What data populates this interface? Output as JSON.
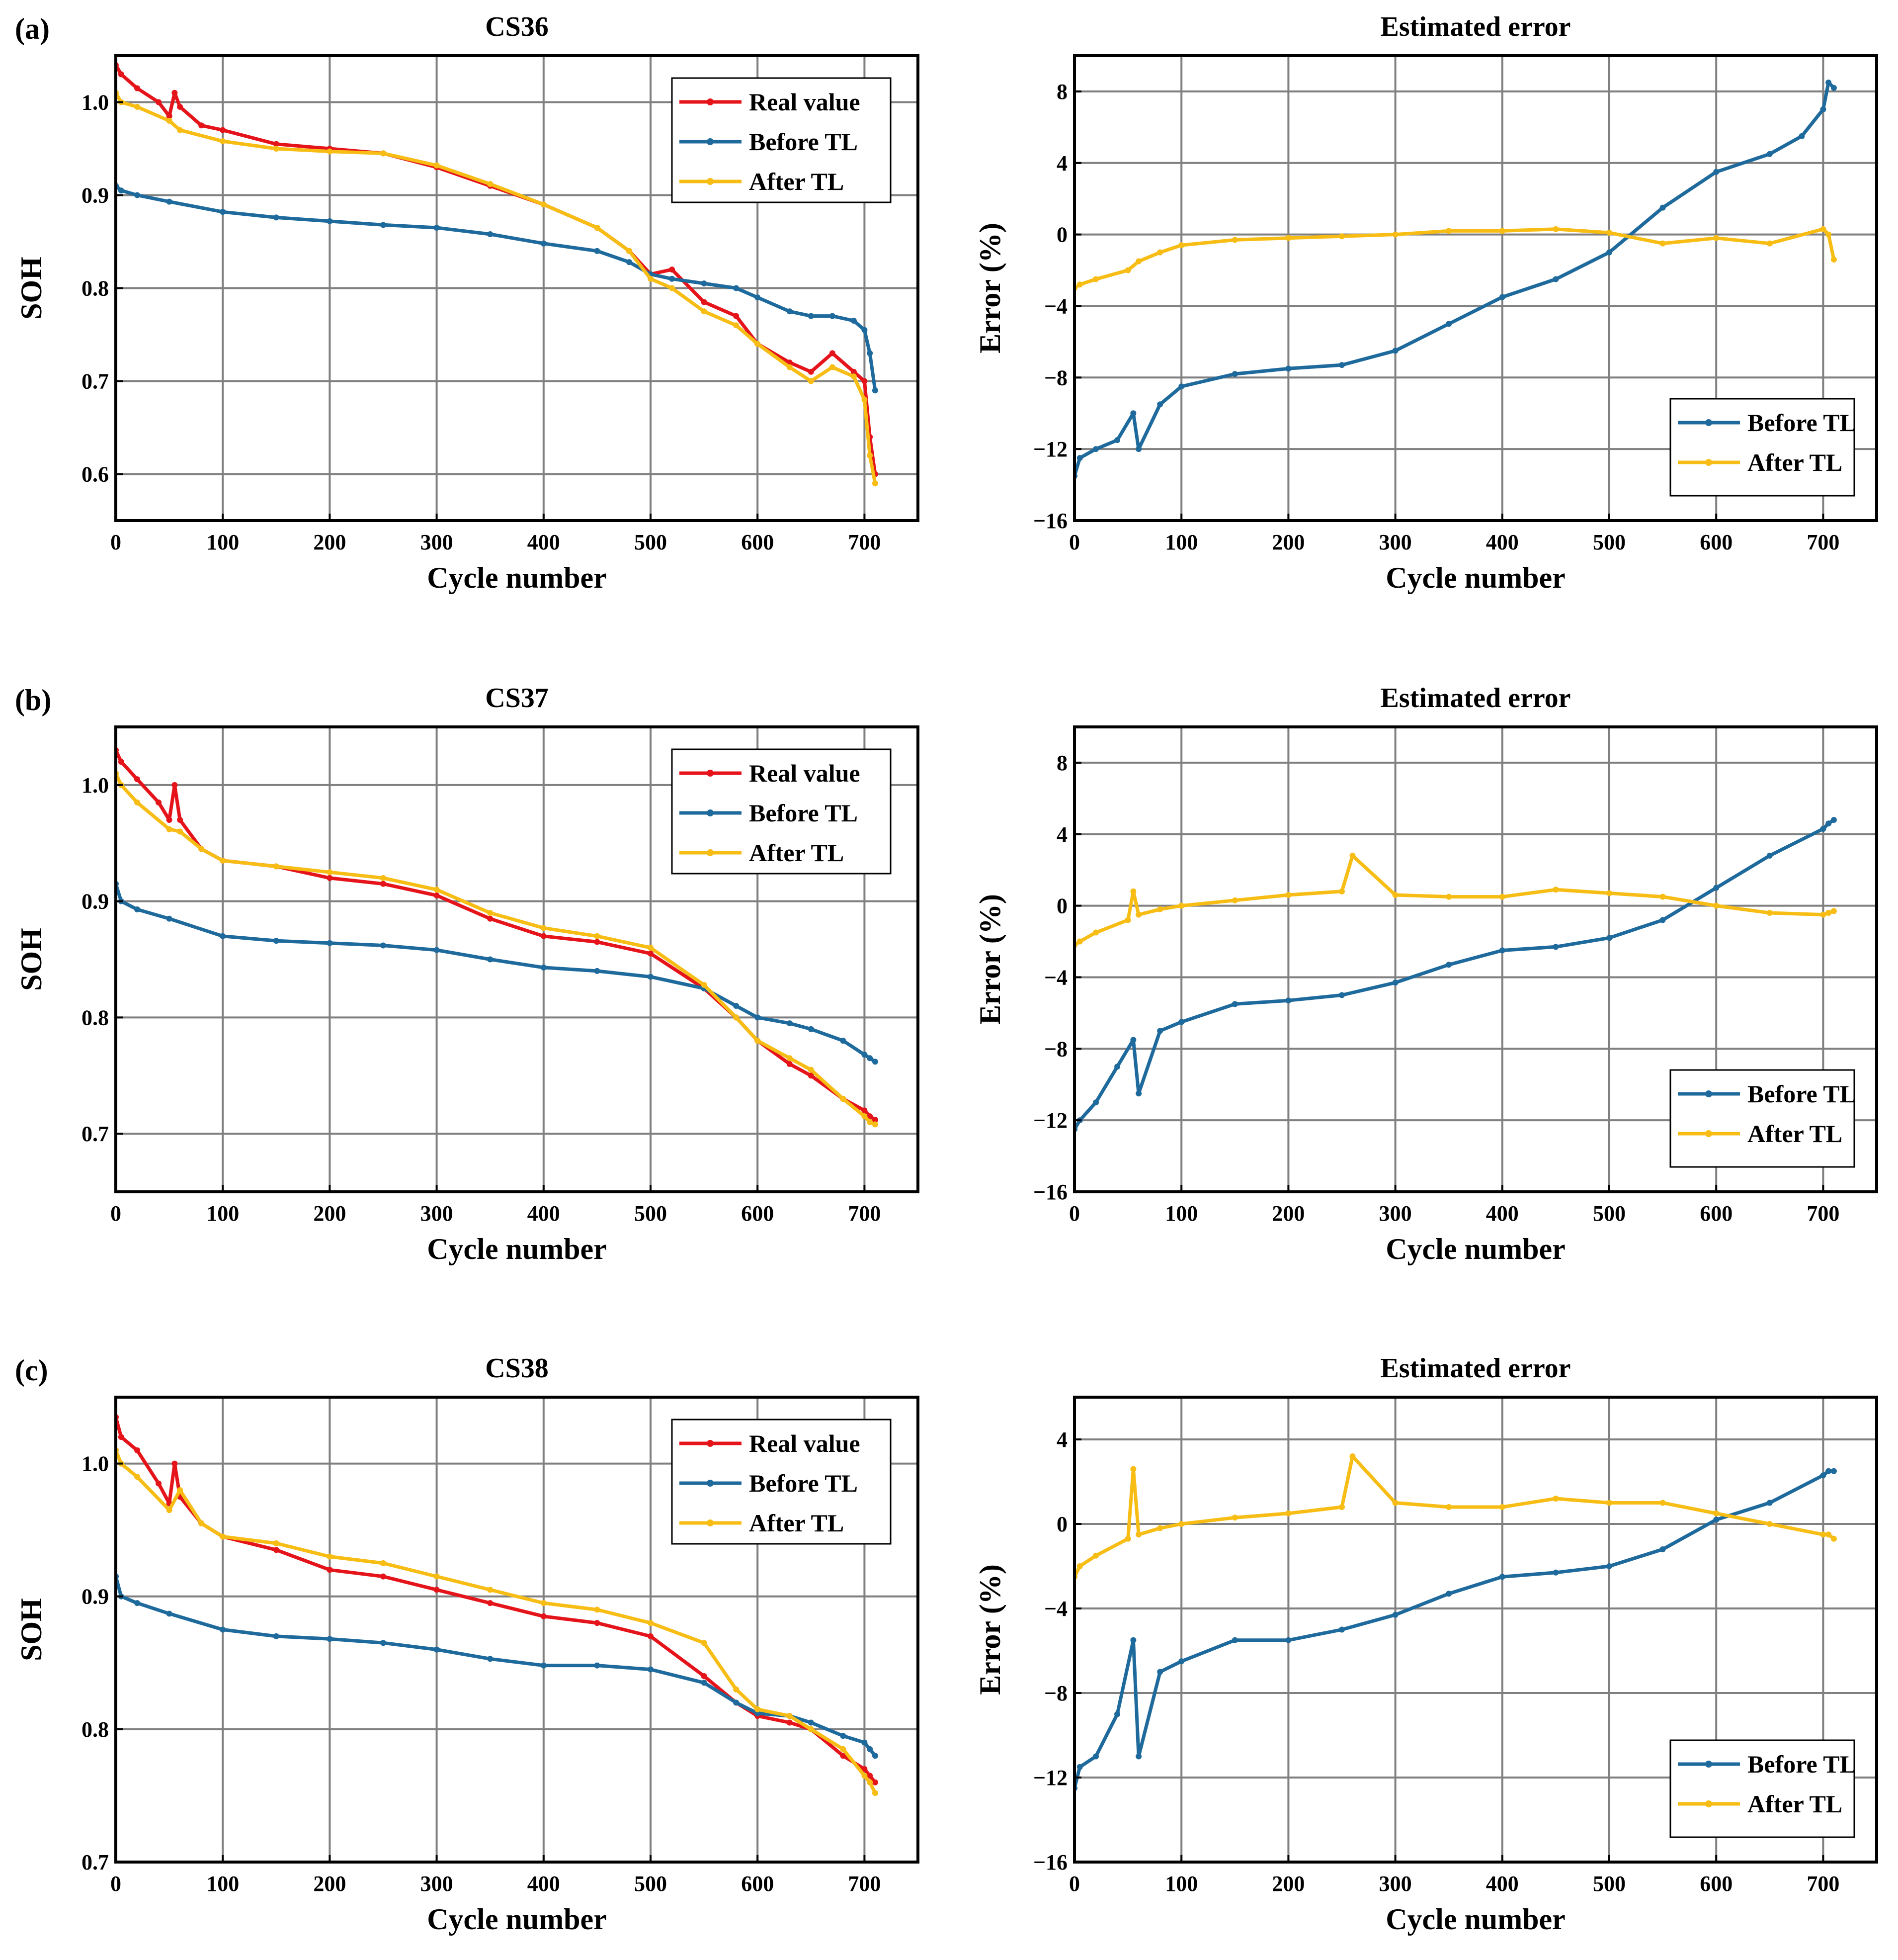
{
  "figure": {
    "panel_labels": [
      "(a)",
      "(b)",
      "(c)"
    ],
    "colors": {
      "real_value": "#e5141a",
      "before_tl": "#1f6a9c",
      "after_tl": "#f7bd14",
      "grid": "#808080",
      "axis": "#000000"
    }
  },
  "chart_data": [
    {
      "id": "a-soh",
      "type": "line",
      "panel": "(a)",
      "title": "CS36",
      "xlabel": "Cycle number",
      "ylabel": "SOH",
      "xlim": [
        0,
        750
      ],
      "ylim": [
        0.55,
        1.05
      ],
      "xticks": [
        0,
        100,
        200,
        300,
        400,
        500,
        600,
        700
      ],
      "yticks": [
        0.6,
        0.7,
        0.8,
        0.9,
        1.0
      ],
      "ytick_labels": [
        "0.6",
        "0.7",
        "0.8",
        "0.9",
        "1.0"
      ],
      "legend_position": "top-right",
      "series": [
        {
          "name": "Real value",
          "color": "#e5141a",
          "x": [
            0,
            5,
            20,
            40,
            50,
            55,
            60,
            80,
            100,
            150,
            200,
            250,
            300,
            350,
            400,
            450,
            480,
            500,
            520,
            550,
            580,
            600,
            630,
            650,
            670,
            690,
            700,
            705,
            710
          ],
          "y": [
            1.04,
            1.03,
            1.015,
            1.0,
            0.985,
            1.01,
            0.995,
            0.975,
            0.97,
            0.955,
            0.95,
            0.945,
            0.93,
            0.91,
            0.89,
            0.865,
            0.84,
            0.815,
            0.82,
            0.785,
            0.77,
            0.74,
            0.72,
            0.71,
            0.73,
            0.71,
            0.7,
            0.64,
            0.6
          ]
        },
        {
          "name": "Before TL",
          "color": "#1f6a9c",
          "x": [
            0,
            5,
            20,
            50,
            100,
            150,
            200,
            250,
            300,
            350,
            400,
            450,
            480,
            500,
            520,
            550,
            580,
            600,
            630,
            650,
            670,
            690,
            700,
            705,
            710
          ],
          "y": [
            0.91,
            0.905,
            0.9,
            0.893,
            0.882,
            0.876,
            0.872,
            0.868,
            0.865,
            0.858,
            0.848,
            0.84,
            0.828,
            0.815,
            0.81,
            0.805,
            0.8,
            0.79,
            0.775,
            0.77,
            0.77,
            0.765,
            0.755,
            0.73,
            0.69
          ]
        },
        {
          "name": "After TL",
          "color": "#f7bd14",
          "x": [
            0,
            5,
            20,
            50,
            60,
            100,
            150,
            200,
            250,
            300,
            350,
            400,
            450,
            480,
            500,
            520,
            550,
            580,
            600,
            630,
            650,
            670,
            690,
            700,
            705,
            710
          ],
          "y": [
            1.01,
            1.0,
            0.995,
            0.98,
            0.97,
            0.958,
            0.95,
            0.947,
            0.945,
            0.932,
            0.912,
            0.89,
            0.865,
            0.84,
            0.81,
            0.8,
            0.775,
            0.76,
            0.74,
            0.715,
            0.7,
            0.715,
            0.705,
            0.68,
            0.62,
            0.59
          ]
        }
      ]
    },
    {
      "id": "a-err",
      "type": "line",
      "panel": "(a)",
      "title": "Estimated error",
      "xlabel": "Cycle number",
      "ylabel": "Error (%)",
      "xlim": [
        0,
        750
      ],
      "ylim": [
        -16,
        10
      ],
      "xticks": [
        0,
        100,
        200,
        300,
        400,
        500,
        600,
        700
      ],
      "yticks": [
        -16,
        -12,
        -8,
        -4,
        0,
        4,
        8
      ],
      "ytick_labels": [
        "−16",
        "−12",
        "−8",
        "−4",
        "0",
        "4",
        "8"
      ],
      "legend_position": "bottom-right",
      "series": [
        {
          "name": "Before TL",
          "color": "#1f6a9c",
          "x": [
            0,
            5,
            20,
            40,
            55,
            60,
            80,
            100,
            150,
            200,
            250,
            300,
            350,
            400,
            450,
            500,
            550,
            600,
            650,
            680,
            700,
            705,
            710
          ],
          "y": [
            -13.5,
            -12.5,
            -12,
            -11.5,
            -10,
            -12,
            -9.5,
            -8.5,
            -7.8,
            -7.5,
            -7.3,
            -6.5,
            -5,
            -3.5,
            -2.5,
            -1,
            1.5,
            3.5,
            4.5,
            5.5,
            7,
            8.5,
            8.2
          ]
        },
        {
          "name": "After TL",
          "color": "#f7bd14",
          "x": [
            0,
            5,
            20,
            50,
            60,
            80,
            100,
            150,
            200,
            250,
            300,
            350,
            400,
            450,
            500,
            550,
            600,
            650,
            700,
            705,
            710
          ],
          "y": [
            -3,
            -2.8,
            -2.5,
            -2,
            -1.5,
            -1,
            -0.6,
            -0.3,
            -0.2,
            -0.1,
            0,
            0.2,
            0.2,
            0.3,
            0.1,
            -0.5,
            -0.2,
            -0.5,
            0.3,
            0,
            -1.4
          ]
        }
      ]
    },
    {
      "id": "b-soh",
      "type": "line",
      "panel": "(b)",
      "title": "CS37",
      "xlabel": "Cycle number",
      "ylabel": "SOH",
      "xlim": [
        0,
        750
      ],
      "ylim": [
        0.65,
        1.05
      ],
      "xticks": [
        0,
        100,
        200,
        300,
        400,
        500,
        600,
        700
      ],
      "yticks": [
        0.7,
        0.8,
        0.9,
        1.0
      ],
      "ytick_labels": [
        "0.7",
        "0.8",
        "0.9",
        "1.0"
      ],
      "legend_position": "top-right",
      "series": [
        {
          "name": "Real value",
          "color": "#e5141a",
          "x": [
            0,
            5,
            20,
            40,
            50,
            55,
            60,
            80,
            100,
            150,
            200,
            250,
            300,
            350,
            400,
            450,
            500,
            550,
            580,
            600,
            630,
            650,
            680,
            700,
            705,
            710
          ],
          "y": [
            1.03,
            1.02,
            1.005,
            0.985,
            0.97,
            1.0,
            0.97,
            0.945,
            0.935,
            0.93,
            0.92,
            0.915,
            0.905,
            0.885,
            0.87,
            0.865,
            0.855,
            0.825,
            0.8,
            0.78,
            0.76,
            0.75,
            0.73,
            0.72,
            0.715,
            0.712
          ]
        },
        {
          "name": "Before TL",
          "color": "#1f6a9c",
          "x": [
            0,
            5,
            20,
            50,
            100,
            150,
            200,
            250,
            300,
            350,
            400,
            450,
            500,
            550,
            580,
            600,
            630,
            650,
            680,
            700,
            705,
            710
          ],
          "y": [
            0.915,
            0.9,
            0.893,
            0.885,
            0.87,
            0.866,
            0.864,
            0.862,
            0.858,
            0.85,
            0.843,
            0.84,
            0.835,
            0.825,
            0.81,
            0.8,
            0.795,
            0.79,
            0.78,
            0.768,
            0.765,
            0.762
          ]
        },
        {
          "name": "After TL",
          "color": "#f7bd14",
          "x": [
            0,
            5,
            20,
            50,
            60,
            80,
            100,
            150,
            200,
            250,
            300,
            350,
            400,
            450,
            500,
            550,
            580,
            600,
            630,
            650,
            680,
            700,
            705,
            710
          ],
          "y": [
            1.01,
            1.0,
            0.985,
            0.962,
            0.96,
            0.945,
            0.935,
            0.93,
            0.925,
            0.92,
            0.91,
            0.89,
            0.877,
            0.87,
            0.86,
            0.828,
            0.8,
            0.78,
            0.765,
            0.755,
            0.73,
            0.715,
            0.71,
            0.708
          ]
        }
      ]
    },
    {
      "id": "b-err",
      "type": "line",
      "panel": "(b)",
      "title": "Estimated error",
      "xlabel": "Cycle number",
      "ylabel": "Error (%)",
      "xlim": [
        0,
        750
      ],
      "ylim": [
        -16,
        10
      ],
      "xticks": [
        0,
        100,
        200,
        300,
        400,
        500,
        600,
        700
      ],
      "yticks": [
        -16,
        -12,
        -8,
        -4,
        0,
        4,
        8
      ],
      "ytick_labels": [
        "−16",
        "−12",
        "−8",
        "−4",
        "0",
        "4",
        "8"
      ],
      "legend_position": "bottom-right",
      "series": [
        {
          "name": "Before TL",
          "color": "#1f6a9c",
          "x": [
            0,
            5,
            20,
            40,
            55,
            60,
            80,
            100,
            150,
            200,
            250,
            300,
            350,
            400,
            450,
            500,
            550,
            600,
            650,
            700,
            705,
            710
          ],
          "y": [
            -12.5,
            -12,
            -11,
            -9,
            -7.5,
            -10.5,
            -7,
            -6.5,
            -5.5,
            -5.3,
            -5,
            -4.3,
            -3.3,
            -2.5,
            -2.3,
            -1.8,
            -0.8,
            1,
            2.8,
            4.3,
            4.6,
            4.8
          ]
        },
        {
          "name": "After TL",
          "color": "#f7bd14",
          "x": [
            0,
            5,
            20,
            50,
            55,
            60,
            80,
            100,
            150,
            200,
            250,
            260,
            300,
            350,
            400,
            450,
            500,
            550,
            600,
            650,
            700,
            705,
            710
          ],
          "y": [
            -2.2,
            -2,
            -1.5,
            -0.8,
            0.8,
            -0.5,
            -0.2,
            0,
            0.3,
            0.6,
            0.8,
            2.8,
            0.6,
            0.5,
            0.5,
            0.9,
            0.7,
            0.5,
            0,
            -0.4,
            -0.5,
            -0.4,
            -0.3
          ]
        }
      ]
    },
    {
      "id": "c-soh",
      "type": "line",
      "panel": "(c)",
      "title": "CS38",
      "xlabel": "Cycle number",
      "ylabel": "SOH",
      "xlim": [
        0,
        750
      ],
      "ylim": [
        0.7,
        1.05
      ],
      "xticks": [
        0,
        100,
        200,
        300,
        400,
        500,
        600,
        700
      ],
      "yticks": [
        0.7,
        0.8,
        0.9,
        1.0
      ],
      "ytick_labels": [
        "0.7",
        "0.8",
        "0.9",
        "1.0"
      ],
      "legend_position": "top-right",
      "series": [
        {
          "name": "Real value",
          "color": "#e5141a",
          "x": [
            0,
            5,
            20,
            40,
            50,
            55,
            60,
            80,
            100,
            150,
            200,
            250,
            300,
            350,
            400,
            450,
            500,
            550,
            580,
            600,
            630,
            650,
            680,
            700,
            705,
            710
          ],
          "y": [
            1.035,
            1.02,
            1.01,
            0.985,
            0.97,
            1.0,
            0.975,
            0.955,
            0.945,
            0.935,
            0.92,
            0.915,
            0.905,
            0.895,
            0.885,
            0.88,
            0.87,
            0.84,
            0.82,
            0.81,
            0.805,
            0.8,
            0.78,
            0.77,
            0.765,
            0.76
          ]
        },
        {
          "name": "Before TL",
          "color": "#1f6a9c",
          "x": [
            0,
            5,
            20,
            50,
            100,
            150,
            200,
            250,
            300,
            350,
            400,
            450,
            500,
            550,
            580,
            600,
            630,
            650,
            680,
            700,
            705,
            710
          ],
          "y": [
            0.915,
            0.9,
            0.895,
            0.887,
            0.875,
            0.87,
            0.868,
            0.865,
            0.86,
            0.853,
            0.848,
            0.848,
            0.845,
            0.835,
            0.82,
            0.812,
            0.81,
            0.805,
            0.795,
            0.79,
            0.785,
            0.78
          ]
        },
        {
          "name": "After TL",
          "color": "#f7bd14",
          "x": [
            0,
            5,
            20,
            50,
            60,
            80,
            100,
            150,
            200,
            250,
            300,
            350,
            400,
            450,
            500,
            550,
            580,
            600,
            630,
            650,
            680,
            700,
            705,
            710
          ],
          "y": [
            1.01,
            1.0,
            0.99,
            0.965,
            0.98,
            0.955,
            0.945,
            0.94,
            0.93,
            0.925,
            0.915,
            0.905,
            0.895,
            0.89,
            0.88,
            0.865,
            0.83,
            0.815,
            0.81,
            0.8,
            0.785,
            0.765,
            0.76,
            0.752
          ]
        }
      ]
    },
    {
      "id": "c-err",
      "type": "line",
      "panel": "(c)",
      "title": "Estimated error",
      "xlabel": "Cycle number",
      "ylabel": "Error (%)",
      "xlim": [
        0,
        750
      ],
      "ylim": [
        -16,
        6
      ],
      "xticks": [
        0,
        100,
        200,
        300,
        400,
        500,
        600,
        700
      ],
      "yticks": [
        -16,
        -12,
        -8,
        -4,
        0,
        4
      ],
      "ytick_labels": [
        "−16",
        "−12",
        "−8",
        "−4",
        "0",
        "4"
      ],
      "legend_position": "bottom-right",
      "series": [
        {
          "name": "Before TL",
          "color": "#1f6a9c",
          "x": [
            0,
            5,
            20,
            40,
            55,
            60,
            80,
            100,
            150,
            200,
            250,
            300,
            350,
            400,
            450,
            500,
            550,
            600,
            650,
            700,
            705,
            710
          ],
          "y": [
            -12.5,
            -11.5,
            -11,
            -9,
            -5.5,
            -11,
            -7,
            -6.5,
            -5.5,
            -5.5,
            -5,
            -4.3,
            -3.3,
            -2.5,
            -2.3,
            -2,
            -1.2,
            0.2,
            1,
            2.3,
            2.5,
            2.5
          ]
        },
        {
          "name": "After TL",
          "color": "#f7bd14",
          "x": [
            0,
            5,
            20,
            50,
            55,
            60,
            80,
            100,
            150,
            200,
            250,
            260,
            300,
            350,
            400,
            450,
            500,
            550,
            600,
            650,
            700,
            705,
            710
          ],
          "y": [
            -2.5,
            -2,
            -1.5,
            -0.7,
            2.6,
            -0.5,
            -0.2,
            0,
            0.3,
            0.5,
            0.8,
            3.2,
            1,
            0.8,
            0.8,
            1.2,
            1,
            1,
            0.5,
            0,
            -0.5,
            -0.5,
            -0.7
          ]
        }
      ]
    }
  ]
}
